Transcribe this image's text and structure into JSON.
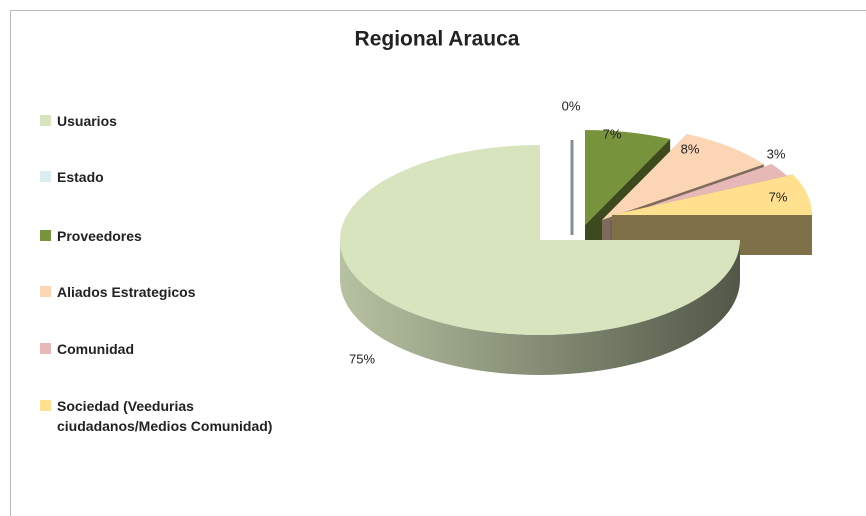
{
  "chart_data": {
    "type": "pie",
    "title": "Regional Arauca",
    "categories": [
      "Usuarios",
      "Estado",
      "Proveedores",
      "Aliados Estrategicos",
      "Comunidad",
      "Sociedad (Veedurias ciudadanos/Medios Comunidad)"
    ],
    "values": [
      75,
      0,
      7,
      8,
      3,
      7
    ],
    "value_labels": [
      "75%",
      "0%",
      "7%",
      "8%",
      "3%",
      "7%"
    ],
    "colors": [
      "#d7e4bd",
      "#dbeef4",
      "#77933c",
      "#fcd5b5",
      "#e6b9b8",
      "#ffe08f"
    ],
    "legend": "left"
  }
}
